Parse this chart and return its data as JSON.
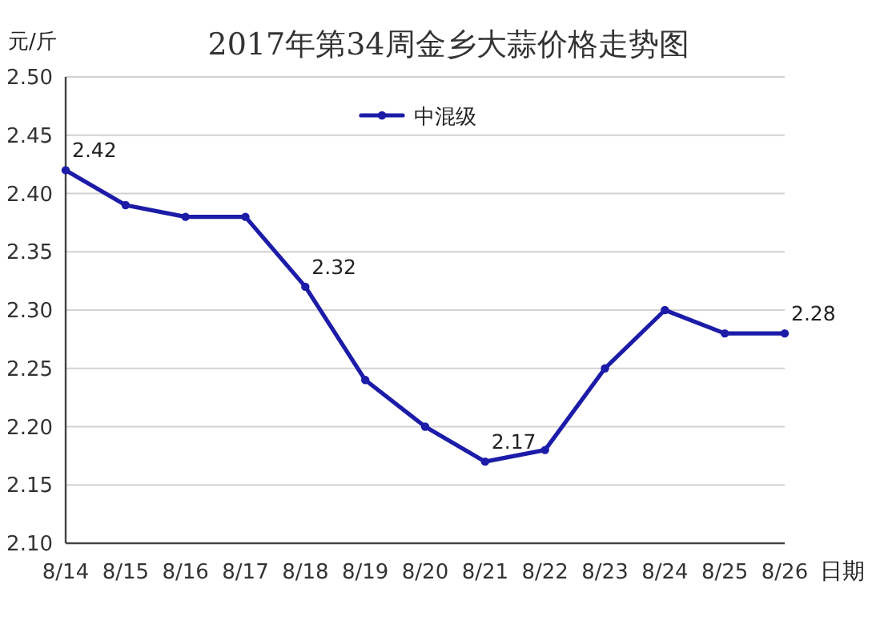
{
  "chart_data": {
    "type": "line",
    "title": "2017年第34周金乡大蒜价格走势图",
    "xlabel": "日期",
    "ylabel": "元/斤",
    "categories": [
      "8/14",
      "8/15",
      "8/16",
      "8/17",
      "8/18",
      "8/19",
      "8/20",
      "8/21",
      "8/22",
      "8/23",
      "8/24",
      "8/25",
      "8/26"
    ],
    "series": [
      {
        "name": "中混级",
        "color": "#1c1ca8",
        "values": [
          2.42,
          2.39,
          2.38,
          2.38,
          2.32,
          2.24,
          2.2,
          2.17,
          2.18,
          2.25,
          2.3,
          2.28,
          2.28
        ],
        "value_labels": [
          "2.42",
          null,
          null,
          null,
          "2.32",
          null,
          null,
          "2.17",
          null,
          null,
          null,
          null,
          "2.28"
        ]
      }
    ],
    "ylim": [
      2.1,
      2.5
    ],
    "yticks": [
      {
        "value": 2.1,
        "label": "2.10"
      },
      2.15,
      {
        "value": 2.2,
        "label": "2.20"
      },
      2.25,
      {
        "value": 2.3,
        "label": "2.30"
      },
      2.35,
      {
        "value": 2.4,
        "label": "2.40"
      },
      2.45,
      {
        "value": 2.5,
        "label": "2.50"
      }
    ],
    "grid": "y",
    "legend": "top",
    "marker": "circle"
  }
}
